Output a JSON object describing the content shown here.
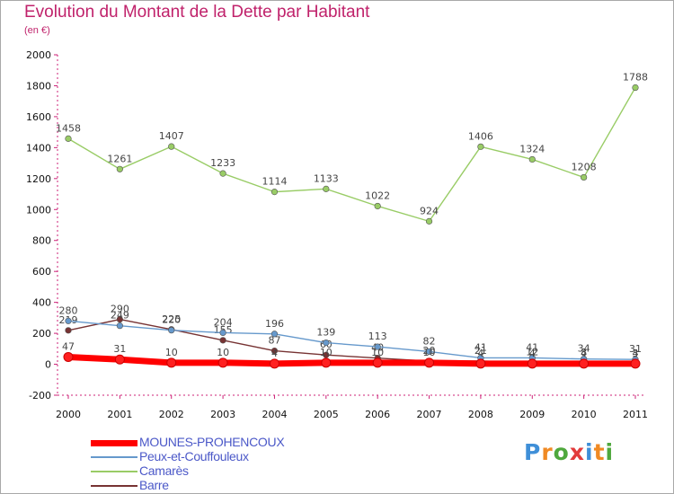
{
  "chart_data": {
    "type": "line",
    "title": "Evolution du Montant de la Dette par Habitant",
    "subtitle": "(en €)",
    "xlabel": "",
    "ylabel": "",
    "x": [
      "2000",
      "2001",
      "2002",
      "2003",
      "2004",
      "2005",
      "2006",
      "2007",
      "2008",
      "2009",
      "2010",
      "2011"
    ],
    "ylim": [
      -200,
      2000
    ],
    "yticks": [
      -200,
      0,
      200,
      400,
      600,
      800,
      1000,
      1200,
      1400,
      1600,
      1800,
      2000
    ],
    "grid": false,
    "legend_position": "bottom-left",
    "series": [
      {
        "name": "MOUNES-PROHENCOUX",
        "color": "#ff0000",
        "values": [
          47,
          31,
          10,
          10,
          4,
          10,
          10,
          10,
          4,
          4,
          4,
          4
        ],
        "labels": [
          "47",
          "31",
          "10",
          "10",
          "4",
          "10",
          "10",
          "10",
          "4",
          "4",
          "4",
          "4"
        ]
      },
      {
        "name": "Peux-et-Couffouleux",
        "color": "#6699cc",
        "values": [
          280,
          249,
          220,
          204,
          196,
          139,
          113,
          82,
          41,
          41,
          34,
          31
        ],
        "labels": [
          "280",
          "249",
          "220",
          "204",
          "196",
          "139",
          "113",
          "82",
          "41",
          "41",
          "34",
          "31"
        ]
      },
      {
        "name": "Camarès",
        "color": "#99cc66",
        "values": [
          1458,
          1261,
          1407,
          1233,
          1114,
          1133,
          1022,
          924,
          1406,
          1324,
          1208,
          1788
        ],
        "labels": [
          "1458",
          "1261",
          "1407",
          "1233",
          "1114",
          "1133",
          "1022",
          "924",
          "1406",
          "1324",
          "1208",
          "1788"
        ]
      },
      {
        "name": "Barre",
        "color": "#773333",
        "values": [
          219,
          290,
          225,
          155,
          87,
          60,
          40,
          20,
          21,
          12,
          8,
          3
        ],
        "labels": [
          "219",
          "290",
          "225",
          "155",
          "87",
          "60",
          "40",
          "20",
          "21",
          "12",
          "8",
          "3"
        ]
      }
    ]
  },
  "brand": {
    "letters": [
      "P",
      "r",
      "o",
      "x",
      "i",
      "t",
      "i"
    ],
    "colors": [
      "#3f8fd8",
      "#f08a24",
      "#4fa83d",
      "#e23b3b",
      "#3f8fd8",
      "#f08a24",
      "#4fa83d"
    ]
  }
}
